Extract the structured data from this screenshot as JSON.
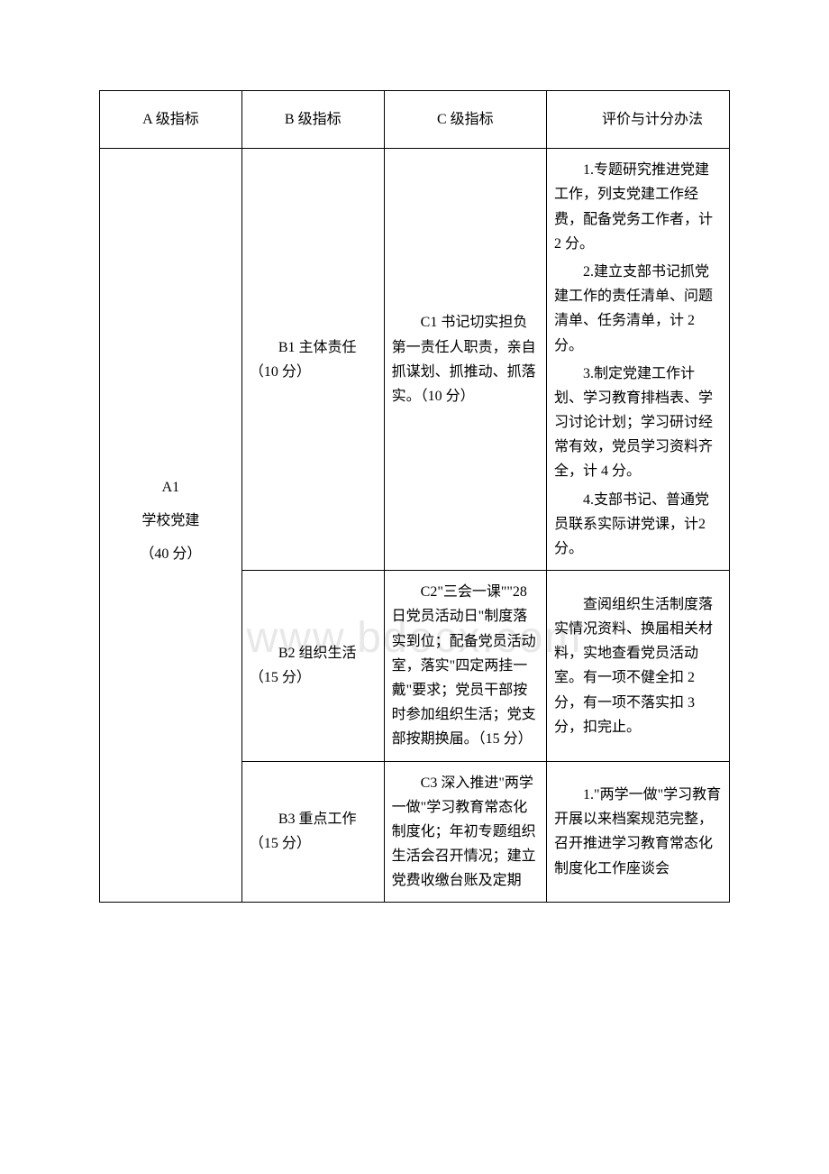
{
  "watermark": "www.bdocx.com",
  "table": {
    "columns": [
      "A 级指标",
      "B 级指标",
      "C 级指标",
      "评价与计分办法"
    ],
    "rows": [
      {
        "a": {
          "label": "A1",
          "name": "学校党建",
          "score": "（40 分）"
        },
        "b": "B1 主体责任（10 分）",
        "c": "C1 书记切实担负第一责任人职责，亲自抓谋划、抓推动、抓落实。（10 分）",
        "d": [
          "1.专题研究推进党建工作，列支党建工作经费，配备党务工作者，计 2 分。",
          "2.建立支部书记抓党建工作的责任清单、问题清单、任务清单，计 2 分。",
          "3.制定党建工作计划、学习教育排档表、学习讨论计划；学习研讨经常有效，党员学习资料齐全，计 4 分。",
          "4.支部书记、普通党员联系实际讲党课，计2 分。"
        ]
      },
      {
        "b": "B2 组织生活（15 分）",
        "c": "C2\"三会一课\"\"28 日党员活动日\"制度落实到位；配备党员活动室，落实\"四定两挂一戴\"要求；党员干部按时参加组织生活；党支部按期换届。（15 分）",
        "d": [
          "查阅组织生活制度落实情况资料、换届相关材料，实地查看党员活动室。有一项不健全扣 2分，有一项不落实扣 3 分，扣完止。"
        ]
      },
      {
        "b": "B3 重点工作（15 分）",
        "c": "C3 深入推进\"两学一做\"学习教育常态化制度化；年初专题组织生活会召开情况；建立党费收缴台账及定期",
        "d": [
          "1.\"两学一做\"学习教育开展以来档案规范完整，召开推进学习教育常态化制度化工作座谈会"
        ]
      }
    ]
  }
}
